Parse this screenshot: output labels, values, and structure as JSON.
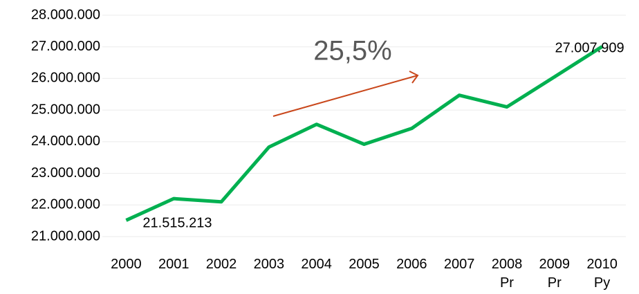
{
  "chart_data": {
    "type": "line",
    "categories": [
      "2000",
      "2001",
      "2002",
      "2003",
      "2004",
      "2005",
      "2006",
      "2007",
      "2008 Pr",
      "2009 Pr",
      "2010 Py"
    ],
    "series": [
      {
        "color": "#00b050",
        "values": [
          21515213,
          22200000,
          22100000,
          23830000,
          24550000,
          23920000,
          24420000,
          25470000,
          25100000,
          26050000,
          27007909
        ],
        "value_labels": [
          "21.515.213",
          null,
          null,
          null,
          null,
          null,
          null,
          null,
          null,
          null,
          "27.007.909"
        ]
      }
    ],
    "ylim": [
      21000000,
      28000000
    ],
    "yticks": [
      {
        "value": 21000000,
        "label": "21.000.000"
      },
      {
        "value": 22000000,
        "label": "22.000.000"
      },
      {
        "value": 23000000,
        "label": "23.000.000"
      },
      {
        "value": 24000000,
        "label": "24.000.000"
      },
      {
        "value": 25000000,
        "label": "25.000.000"
      },
      {
        "value": 26000000,
        "label": "26.000.000"
      },
      {
        "value": 27000000,
        "label": "27.000.000"
      },
      {
        "value": 28000000,
        "label": "28.000.000"
      }
    ],
    "grid": true,
    "annotation": "25,5%"
  }
}
